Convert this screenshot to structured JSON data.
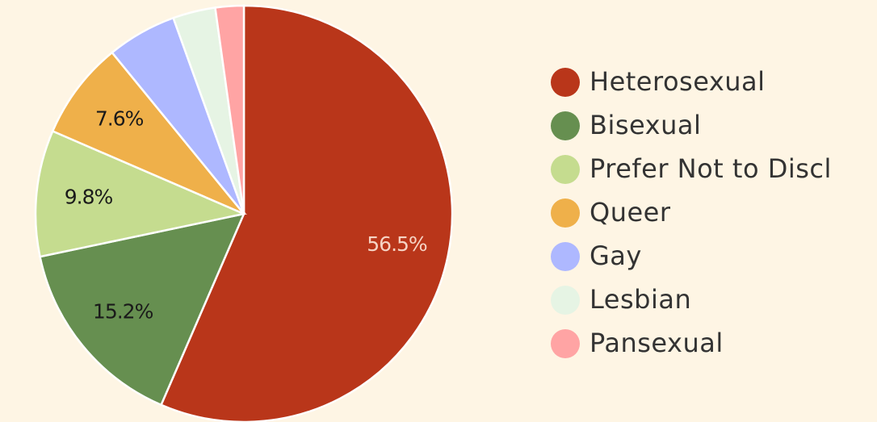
{
  "chart_data": {
    "type": "pie",
    "categories": [
      "Heterosexual",
      "Bisexual",
      "Prefer Not to Discl",
      "Queer",
      "Gay",
      "Lesbian",
      "Pansexual"
    ],
    "values": [
      56.5,
      15.2,
      9.8,
      7.6,
      5.4,
      3.3,
      2.2
    ],
    "value_labels": [
      "56.5%",
      "15.2%",
      "9.8%",
      "7.6%",
      null,
      null,
      null
    ],
    "colors": [
      "#b9361a",
      "#668f50",
      "#c5dc8f",
      "#efb04a",
      "#aeb8ff",
      "#e6f4e4",
      "#ffa4a4"
    ],
    "legend": "right"
  }
}
